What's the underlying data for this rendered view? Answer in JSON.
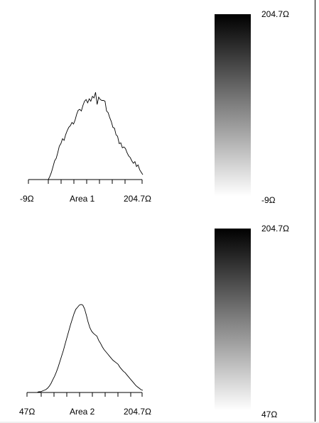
{
  "chart_data": [
    {
      "type": "area",
      "title": "Area 1",
      "x_min_label": "-9Ω",
      "x_max_label": "204.7Ω",
      "colorbar_top_label": "204.7Ω",
      "colorbar_bottom_label": "-9Ω",
      "x": [
        0,
        1,
        2,
        3,
        4,
        5,
        6,
        7,
        8,
        9,
        10,
        11,
        12,
        13,
        14,
        15,
        16,
        17,
        18,
        19,
        20,
        21,
        22,
        23,
        24,
        25,
        26,
        27,
        28,
        29,
        30,
        31,
        32,
        33,
        34,
        35,
        36,
        37,
        38,
        39,
        40,
        41,
        42,
        43,
        44,
        45,
        46,
        47,
        48,
        49,
        50,
        51,
        52,
        53,
        54,
        55,
        56,
        57,
        58,
        59,
        60
      ],
      "values": [
        0,
        4,
        9,
        16,
        23,
        26,
        33,
        41,
        44,
        50,
        48,
        55,
        60,
        64,
        66,
        70,
        68,
        73,
        80,
        85,
        86,
        84,
        91,
        96,
        98,
        94,
        99,
        96,
        102,
        100,
        107,
        92,
        101,
        98,
        97,
        97,
        96,
        84,
        82,
        76,
        71,
        64,
        63,
        55,
        53,
        44,
        45,
        39,
        40,
        38,
        33,
        29,
        27,
        23,
        20,
        22,
        16,
        18,
        12,
        9,
        6
      ],
      "ylim": [
        0,
        110
      ]
    },
    {
      "type": "area",
      "title": "Area 2",
      "x_min_label": "47Ω",
      "x_max_label": "204.7Ω",
      "colorbar_top_label": "204.7Ω",
      "colorbar_bottom_label": "47Ω",
      "x": [
        0,
        1,
        2,
        3,
        4,
        5,
        6,
        7,
        8,
        9,
        10,
        11,
        12,
        13,
        14,
        15,
        16,
        17,
        18,
        19,
        20,
        21,
        22,
        23,
        24,
        25,
        26,
        27,
        28,
        29,
        30,
        31,
        32,
        33,
        34,
        35,
        36,
        37,
        38,
        39,
        40,
        41,
        42,
        43,
        44,
        45,
        46,
        47,
        48,
        49,
        50,
        51,
        52,
        53,
        54,
        55,
        56,
        57,
        58,
        59,
        60
      ],
      "values": [
        0,
        1,
        1,
        2,
        3,
        4,
        6,
        9,
        13,
        18,
        23,
        29,
        36,
        44,
        52,
        60,
        69,
        78,
        87,
        96,
        104,
        112,
        118,
        121,
        124,
        125,
        124,
        119,
        110,
        100,
        92,
        87,
        84,
        82,
        80,
        74,
        70,
        65,
        61,
        58,
        55,
        52,
        49,
        46,
        44,
        42,
        40,
        36,
        33,
        30,
        28,
        25,
        22,
        19,
        16,
        13,
        10,
        8,
        6,
        4,
        3
      ],
      "ylim": [
        0,
        130
      ]
    }
  ]
}
